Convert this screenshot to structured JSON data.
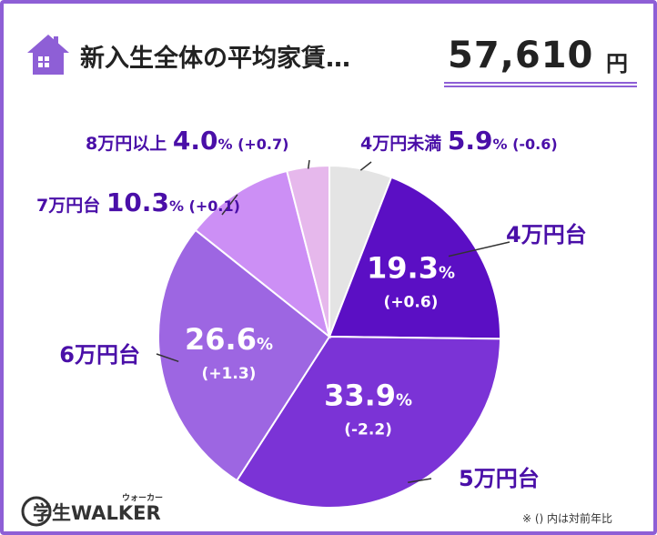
{
  "header": {
    "title": "新入生全体の平均家賃…",
    "amount": "57,610",
    "unit": "円",
    "icon": "house-icon"
  },
  "colors": {
    "accent": "#8e5fd6",
    "label_text": "#4a0fa8",
    "slice_4man": "#5b0fc4",
    "slice_5man": "#7b33d6",
    "slice_6man": "#9d66e2",
    "slice_7man": "#cc8ff5",
    "slice_8man": "#e6b8ec",
    "slice_under4": "#e4e4e4"
  },
  "chart_data": {
    "type": "pie",
    "start": "12 o'clock, clockwise",
    "slices": [
      {
        "category": "4万円未満",
        "value": 5.9,
        "value_label": "5.9",
        "change": "(-0.6)"
      },
      {
        "category": "4万円台",
        "value": 19.3,
        "value_label": "19.3",
        "change": "(+0.6)"
      },
      {
        "category": "5万円台",
        "value": 33.9,
        "value_label": "33.9",
        "change": "(-2.2)"
      },
      {
        "category": "6万円台",
        "value": 26.6,
        "value_label": "26.6",
        "change": "(+1.3)"
      },
      {
        "category": "7万円台",
        "value": 10.3,
        "value_label": "10.3",
        "change": "(+0.1)"
      },
      {
        "category": "8万円以上",
        "value": 4.0,
        "value_label": "4.0",
        "change": "(+0.7)"
      }
    ],
    "percent_sign": "%"
  },
  "logo": {
    "text": "学生WALKER",
    "kana": "ウォーカー"
  },
  "footnote": "※ () 内は対前年比"
}
